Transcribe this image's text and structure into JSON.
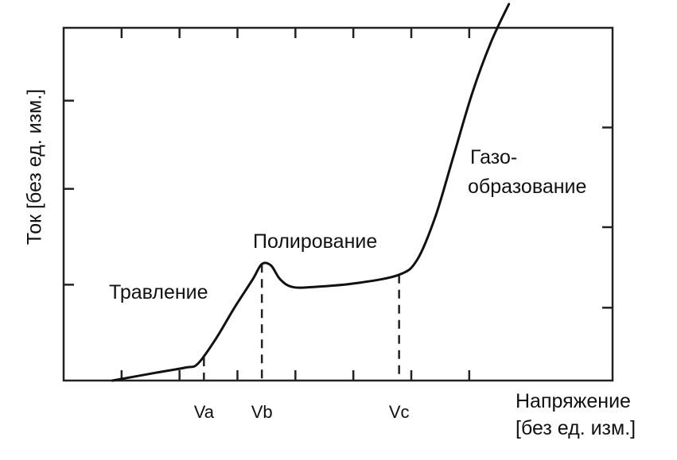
{
  "chart_data": {
    "type": "line",
    "ylabel": "Ток [без ед. изм.]",
    "xlabel_line1": "Напряжение",
    "xlabel_line2": "[без ед. изм.]",
    "xlim": [
      0,
      9
    ],
    "ylim": [
      0,
      4.6
    ],
    "grid": false,
    "series": [
      {
        "x": [
          0.8,
          1.5,
          2.0,
          2.2,
          2.5,
          2.8,
          3.1,
          3.25,
          3.4,
          3.55,
          3.75,
          4.1,
          4.8,
          5.5,
          5.8,
          6.1,
          6.4,
          6.7,
          7.0,
          7.3
        ],
        "y": [
          0.0,
          0.1,
          0.17,
          0.22,
          0.55,
          0.95,
          1.32,
          1.52,
          1.5,
          1.32,
          1.22,
          1.22,
          1.27,
          1.38,
          1.58,
          2.15,
          2.95,
          3.75,
          4.4,
          4.91
        ]
      }
    ],
    "markers": [
      {
        "label": "Va",
        "x": 2.3,
        "y": 0.3
      },
      {
        "label": "Vb",
        "x": 3.25,
        "y": 1.52
      },
      {
        "label": "Vc",
        "x": 5.5,
        "y": 1.38
      }
    ],
    "annotations": {
      "etching": "Травление",
      "polishing": "Полирование",
      "gas_line1": "Газо-",
      "gas_line2": "образование"
    }
  }
}
